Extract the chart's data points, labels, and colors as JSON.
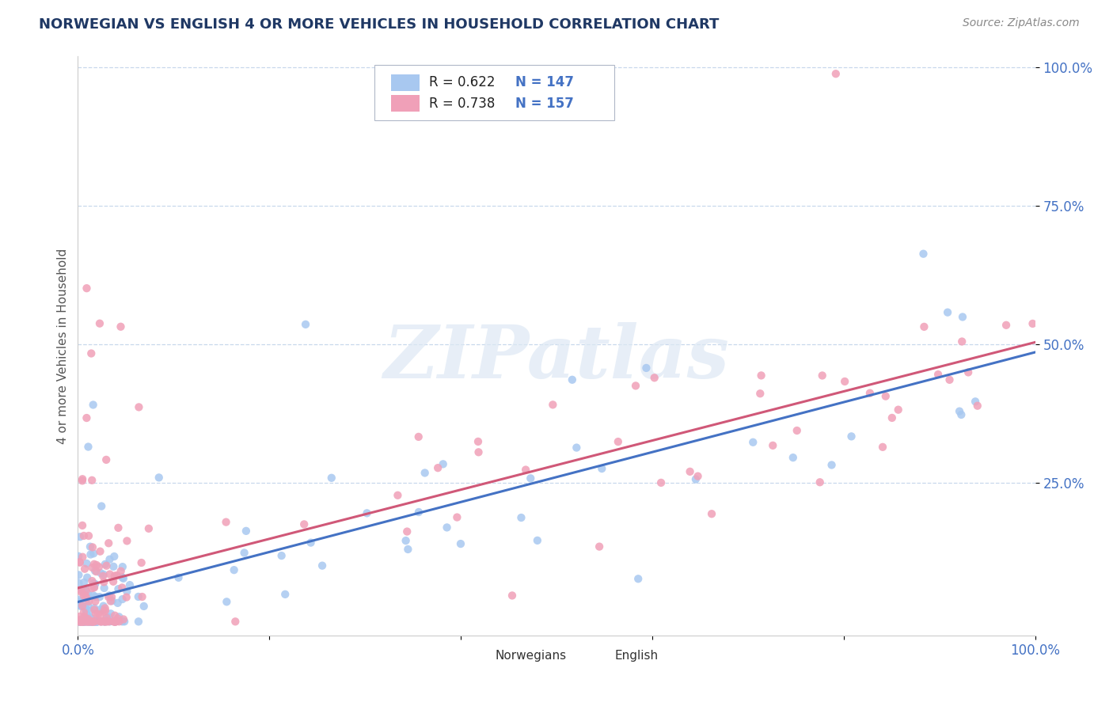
{
  "title": "NORWEGIAN VS ENGLISH 4 OR MORE VEHICLES IN HOUSEHOLD CORRELATION CHART",
  "source": "Source: ZipAtlas.com",
  "ylabel": "4 or more Vehicles in Household",
  "watermark": "ZIPatlas",
  "legend_r_norwegian": "R = 0.622",
  "legend_n_norwegian": "N = 147",
  "legend_r_english": "R = 0.738",
  "legend_n_english": "N = 157",
  "norwegian_color": "#a8c8f0",
  "english_color": "#f0a0b8",
  "norwegian_line_color": "#4472c4",
  "english_line_color": "#d05878",
  "title_color": "#1f3864",
  "axis_label_color": "#4472c4",
  "grid_color": "#c8d8ec",
  "background_color": "#ffffff",
  "norw_slope": 0.43,
  "norw_intercept": 0.01,
  "eng_slope": 0.5,
  "eng_intercept": 0.01
}
